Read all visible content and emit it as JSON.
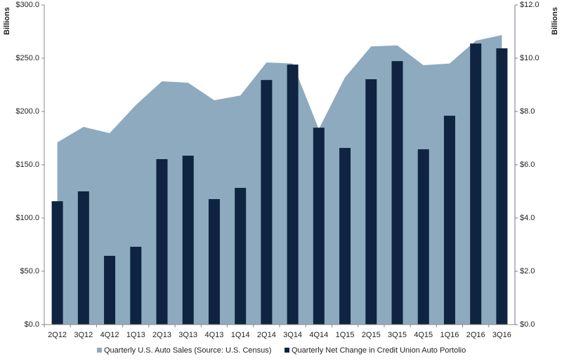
{
  "chart_data": {
    "type": "area-bar",
    "ylabel": "Billions",
    "y2label": "Billions",
    "categories": [
      "2Q12",
      "3Q12",
      "4Q12",
      "1Q13",
      "2Q13",
      "3Q13",
      "4Q13",
      "1Q14",
      "2Q14",
      "3Q14",
      "4Q14",
      "1Q15",
      "2Q15",
      "3Q15",
      "4Q15",
      "1Q16",
      "2Q16",
      "3Q16"
    ],
    "series": [
      {
        "name": "Quarterly U.S. Auto Sales (Source: U.S. Census)",
        "type": "area",
        "color": "#8eaabf",
        "values": [
          171,
          185.5,
          179.6,
          206,
          228.3,
          227,
          210.5,
          215,
          246,
          245,
          183.5,
          232,
          261,
          262,
          243.4,
          245,
          266.4,
          271.7
        ]
      },
      {
        "name": "Quarterly Net Change in Credit Union Auto Portolio",
        "type": "bar",
        "axis": "y2",
        "color": "#0f2441",
        "values": [
          4.63,
          5.0,
          2.58,
          2.92,
          6.21,
          6.34,
          4.71,
          5.13,
          9.18,
          9.76,
          7.39,
          6.63,
          9.21,
          9.89,
          6.58,
          7.84,
          10.55,
          10.37
        ]
      }
    ],
    "ylim": [
      0,
      300
    ],
    "yticks": [
      {
        "value": 0,
        "label": "$0.0"
      },
      {
        "value": 50,
        "label": "$50.0"
      },
      {
        "value": 100,
        "label": "$100.0"
      },
      {
        "value": 150,
        "label": "$150.0"
      },
      {
        "value": 200,
        "label": "$200.0"
      },
      {
        "value": 250,
        "label": "$250.0"
      },
      {
        "value": 300,
        "label": "$300.0"
      }
    ],
    "y2lim": [
      0,
      12
    ],
    "y2ticks": [
      {
        "value": 0,
        "label": "$0.0"
      },
      {
        "value": 2,
        "label": "$2.0"
      },
      {
        "value": 4,
        "label": "$4.0"
      },
      {
        "value": 6,
        "label": "$6.0"
      },
      {
        "value": 8,
        "label": "$8.0"
      },
      {
        "value": 10,
        "label": "$10.0"
      },
      {
        "value": 12,
        "label": "$12.0"
      }
    ]
  }
}
